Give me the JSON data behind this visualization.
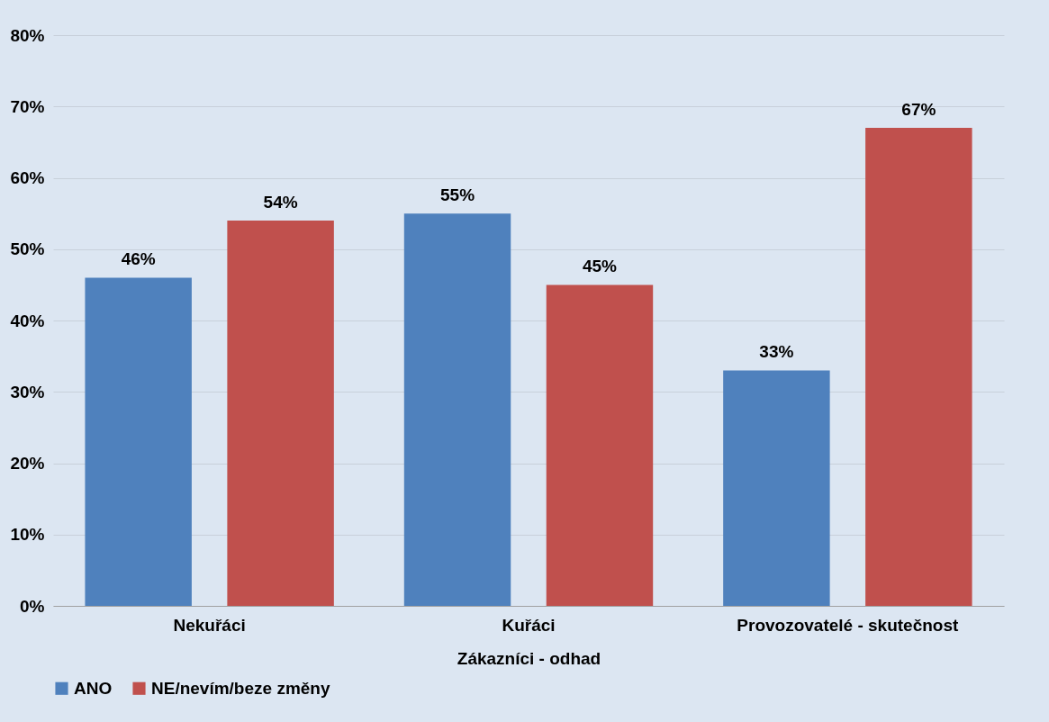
{
  "chart_data": {
    "type": "bar",
    "categories": [
      "Nekuřáci",
      "Kuřáci",
      "Provozovatelé - skutečnost"
    ],
    "xlabel": "Zákazníci - odhad",
    "series": [
      {
        "name": "ANO",
        "color": "#4f81bd",
        "values": [
          46,
          55,
          33
        ],
        "value_labels": [
          "46%",
          "55%",
          "33%"
        ]
      },
      {
        "name": "NE/nevím/beze změny",
        "color": "#c0504d",
        "values": [
          54,
          45,
          67
        ],
        "value_labels": [
          "54%",
          "45%",
          "67%"
        ]
      }
    ],
    "ylim": [
      0,
      80
    ],
    "yticks": [
      {
        "value": 0,
        "label": "0%"
      },
      {
        "value": 10,
        "label": "10%"
      },
      {
        "value": 20,
        "label": "20%"
      },
      {
        "value": 30,
        "label": "30%"
      },
      {
        "value": 40,
        "label": "40%"
      },
      {
        "value": 50,
        "label": "50%"
      },
      {
        "value": 60,
        "label": "60%"
      },
      {
        "value": 70,
        "label": "70%"
      },
      {
        "value": 80,
        "label": "80%"
      }
    ],
    "grid": "y",
    "legend": "bottom"
  }
}
